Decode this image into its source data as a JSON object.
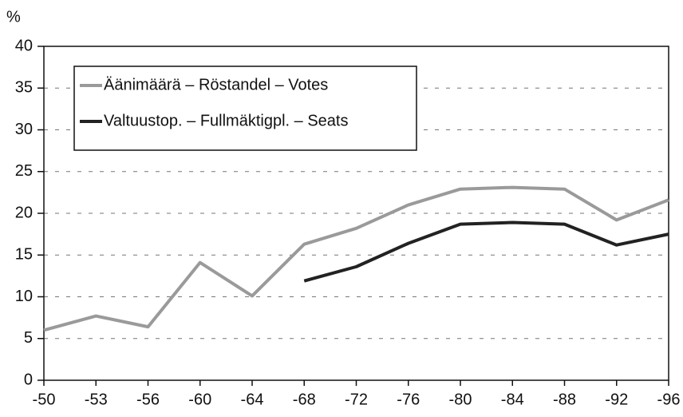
{
  "chart_data": {
    "type": "line",
    "y_label": "%",
    "categories": [
      "-50",
      "-53",
      "-56",
      "-60",
      "-64",
      "-68",
      "-72",
      "-76",
      "-80",
      "-84",
      "-88",
      "-92",
      "-96"
    ],
    "series": [
      {
        "name": "Äänimäärä – Röstandel – Votes",
        "color": "#9a9a9a",
        "values": [
          6.0,
          7.7,
          6.4,
          14.1,
          10.1,
          16.3,
          18.2,
          21.0,
          22.9,
          23.1,
          22.9,
          19.2,
          21.6
        ]
      },
      {
        "name": "Valtuustop. – Fullmäktigpl. – Seats",
        "color": "#222222",
        "values": [
          null,
          null,
          null,
          null,
          null,
          11.9,
          13.6,
          16.4,
          18.7,
          18.9,
          18.7,
          16.2,
          17.5
        ]
      }
    ],
    "ylim": [
      0,
      40
    ],
    "yticks": [
      0,
      5,
      10,
      15,
      20,
      25,
      30,
      35,
      40
    ],
    "grid": true,
    "legend": "upper left"
  }
}
